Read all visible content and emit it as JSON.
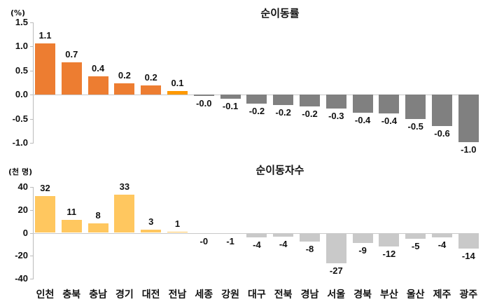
{
  "chart_data": [
    {
      "type": "bar",
      "title": "순이동률",
      "ylabel": "(%)",
      "ylim": [
        -1.0,
        1.5
      ],
      "yticks": [
        "1.5",
        "1.0",
        "0.5",
        "0.0",
        "-0.5",
        "-1.0"
      ],
      "categories": [
        "인천",
        "충북",
        "충남",
        "경기",
        "대전",
        "전남",
        "세종",
        "강원",
        "대구",
        "전북",
        "경남",
        "서울",
        "경북",
        "부산",
        "울산",
        "제주",
        "광주"
      ],
      "values": [
        1.06,
        0.67,
        0.38,
        0.23,
        0.19,
        0.07,
        -0.01,
        -0.09,
        -0.18,
        -0.21,
        -0.24,
        -0.29,
        -0.37,
        -0.39,
        -0.5,
        -0.65,
        -0.99
      ],
      "labels": [
        "1.1",
        "0.7",
        "0.4",
        "0.2",
        "0.2",
        "0.1",
        "-0.0",
        "-0.1",
        "-0.2",
        "-0.2",
        "-0.2",
        "-0.3",
        "-0.4",
        "-0.4",
        "-0.5",
        "-0.6",
        "-1.0"
      ],
      "colors": {
        "positive": "#ed7d31",
        "highlight": "#ff9900",
        "negative": "#808080"
      },
      "grid": false,
      "legend": "none"
    },
    {
      "type": "bar",
      "title": "순이동자수",
      "ylabel": "(천 명)",
      "ylim": [
        -40,
        40
      ],
      "yticks": [
        "40",
        "20",
        "0",
        "-20",
        "-40"
      ],
      "categories": [
        "인천",
        "충북",
        "충남",
        "경기",
        "대전",
        "전남",
        "세종",
        "강원",
        "대구",
        "전북",
        "경남",
        "서울",
        "경북",
        "부산",
        "울산",
        "제주",
        "광주"
      ],
      "values": [
        32,
        11,
        8,
        33,
        3,
        1,
        -0.2,
        -1,
        -4,
        -3.5,
        -7.5,
        -26.5,
        -9,
        -12,
        -5,
        -4,
        -13.5
      ],
      "labels": [
        "32",
        "11",
        "8",
        "33",
        "3",
        "1",
        "-0",
        "-1",
        "-4",
        "-4",
        "-8",
        "-27",
        "-9",
        "-12",
        "-5",
        "-4",
        "-14"
      ],
      "colors": {
        "positive": "#ffc75f",
        "negative": "#c9c9c9"
      },
      "grid": false,
      "legend": "none"
    }
  ]
}
